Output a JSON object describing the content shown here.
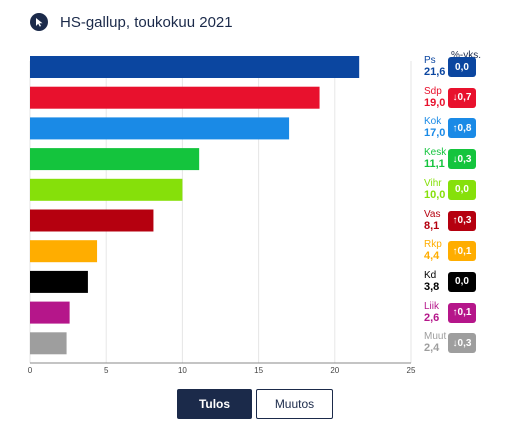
{
  "header": {
    "title": "HS-gallup, toukokuu 2021",
    "icon": "cursor-icon"
  },
  "change_header": "%-yks.",
  "buttons": {
    "result_label": "Tulos",
    "change_label": "Muutos"
  },
  "colors": {
    "navy": "#1b2a4a",
    "axis": "#888888",
    "grid": "#e6e6e6"
  },
  "chart_data": {
    "type": "bar",
    "orientation": "horizontal",
    "title": "HS-gallup, toukokuu 2021",
    "xlim": [
      0,
      25
    ],
    "xticks": [
      "0",
      "5",
      "10",
      "15",
      "20",
      "25"
    ],
    "categories": [
      "Ps",
      "Sdp",
      "Kok",
      "Kesk",
      "Vihr",
      "Vas",
      "Rkp",
      "Kd",
      "Liik",
      "Muut"
    ],
    "values": [
      21.6,
      19.0,
      17.0,
      11.1,
      10.0,
      8.1,
      4.4,
      3.8,
      2.6,
      2.4
    ],
    "value_labels": [
      "21,6",
      "19,0",
      "17,0",
      "11,1",
      "10,0",
      "8,1",
      "4,4",
      "3,8",
      "2,6",
      "2,4"
    ],
    "changes": [
      "0,0",
      "↓0,7",
      "↑0,8",
      "↓0,3",
      "0,0",
      "↑0,3",
      "↑0,1",
      "0,0",
      "↑0,1",
      "↓0,3"
    ],
    "colors": [
      "#0b46a0",
      "#e8112d",
      "#1a8ae6",
      "#14c43d",
      "#86e00a",
      "#b5000f",
      "#ffad00",
      "#000000",
      "#b5168a",
      "#9e9e9e"
    ],
    "grid": true
  }
}
